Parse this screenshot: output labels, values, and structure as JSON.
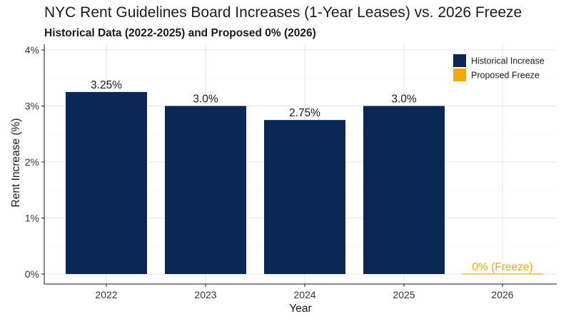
{
  "chart_data": {
    "type": "bar",
    "title": "NYC Rent Guidelines Board Increases (1-Year Leases) vs. 2026 Freeze",
    "subtitle": "Historical Data (2022-2025) and Proposed 0% (2026)",
    "xlabel": "Year",
    "ylabel": "Rent Increase (%)",
    "ylim": [
      0,
      4
    ],
    "yticks": [
      0,
      1,
      2,
      3,
      4
    ],
    "ytick_labels": [
      "0%",
      "1%",
      "2%",
      "3%",
      "4%"
    ],
    "grid": true,
    "legend_position": "top-right",
    "categories": [
      "2022",
      "2023",
      "2024",
      "2025",
      "2026"
    ],
    "values": [
      3.25,
      3.0,
      2.75,
      3.0,
      0
    ],
    "data_labels": [
      "3.25%",
      "3.0%",
      "2.75%",
      "3.0%",
      "0% (Freeze)"
    ],
    "bar_groups": [
      "Historical Increase",
      "Historical Increase",
      "Historical Increase",
      "Historical Increase",
      "Proposed Freeze"
    ],
    "legend": [
      {
        "name": "Historical Increase",
        "color": "#0b2753"
      },
      {
        "name": "Proposed Freeze",
        "color": "#f2a90f"
      }
    ]
  }
}
